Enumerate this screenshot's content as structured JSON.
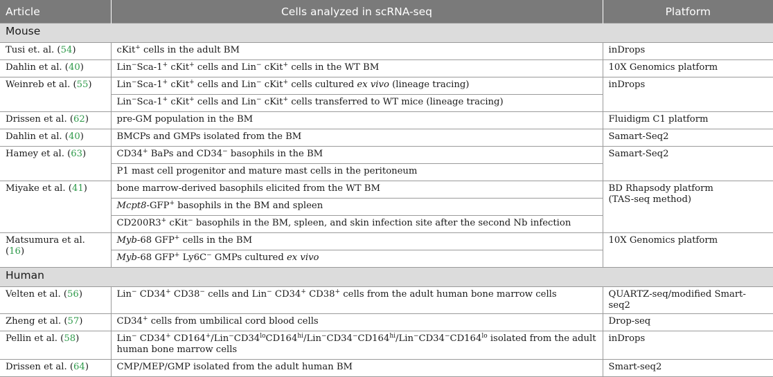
{
  "header": {
    "col_article": "Article",
    "col_cells": "Cells analyzed in scRNA-seq",
    "col_platform": "Platform"
  },
  "groups": {
    "mouse": "Mouse",
    "human": "Human"
  },
  "articles": {
    "tusi": {
      "name": "Tusi et. al. (",
      "ref": "54",
      "close": ")"
    },
    "dahlin1": {
      "name": "Dahlin et al. (",
      "ref": "40",
      "close": ")"
    },
    "weinreb": {
      "name": "Weinreb et al. (",
      "ref": "55",
      "close": ")"
    },
    "drissen1": {
      "name": "Drissen et al. (",
      "ref": "62",
      "close": ")"
    },
    "dahlin2": {
      "name": "Dahlin et al. (",
      "ref": "40",
      "close": ")"
    },
    "hamey": {
      "name": "Hamey et al. (",
      "ref": "63",
      "close": ")"
    },
    "miyake": {
      "name": "Miyake et al. (",
      "ref": "41",
      "close": ")"
    },
    "matsumura": {
      "name": "Matsumura et al. (",
      "ref": "16",
      "close": ")"
    },
    "velten": {
      "name": "Velten et al. (",
      "ref": "56",
      "close": ")"
    },
    "zheng": {
      "name": "Zheng et al. (",
      "ref": "57",
      "close": ")"
    },
    "pellin": {
      "name": "Pellin et al. (",
      "ref": "58",
      "close": ")"
    },
    "drissen2": {
      "name": "Drissen et al. (",
      "ref": "64",
      "close": ")"
    }
  },
  "cells": {
    "tusi": {
      "a": "cKit",
      "a_sup": "+",
      "b": " cells in the adult BM"
    },
    "dahlin1": {
      "t1": "Lin",
      "s1": "−",
      "t2": "Sca-1",
      "s2": "+",
      "t3": " cKit",
      "s3": "+",
      "t4": " cells and Lin",
      "s4": "−",
      "t5": " cKit",
      "s5": "+",
      "t6": " cells in the WT BM"
    },
    "weinreb1": {
      "t1": "Lin",
      "s1": "−",
      "t2": "Sca-1",
      "s2": "+",
      "t3": " cKit",
      "s3": "+",
      "t4": " cells and Lin",
      "s4": "−",
      "t5": " cKit",
      "s5": "+",
      "t6": " cells cultured ",
      "it": "ex vivo",
      "t7": " (lineage tracing)"
    },
    "weinreb2": {
      "t1": "Lin",
      "s1": "−",
      "t2": "Sca-1",
      "s2": "+",
      "t3": " cKit",
      "s3": "+",
      "t4": " cells and Lin",
      "s4": "−",
      "t5": " cKit",
      "s5": "+",
      "t6": " cells transferred to WT mice (lineage tracing)"
    },
    "drissen1": "pre-GM population in the BM",
    "dahlin2": "BMCPs and GMPs isolated from the BM",
    "hamey1": {
      "t1": "CD34",
      "s1": "+",
      "t2": " BaPs and CD34",
      "s2": "−",
      "t3": " basophils in the BM"
    },
    "hamey2": "P1 mast cell progenitor and mature mast cells in the peritoneum",
    "miyake1": "bone marrow-derived basophils elicited from the WT BM",
    "miyake2": {
      "it": "Mcpt8",
      "t1": "-GFP",
      "s1": "+",
      "t2": " basophils in the BM and spleen"
    },
    "miyake3": {
      "t1": "CD200R3",
      "s1": "+",
      "t2": " cKit",
      "s2": "−",
      "t3": " basophils in the BM, spleen, and skin infection site after the second Nb infection"
    },
    "matsumura1": {
      "it": "Myb",
      "t1": "-68 GFP",
      "s1": "+",
      "t2": " cells in the BM"
    },
    "matsumura2": {
      "it": "Myb",
      "t1": "-68 GFP",
      "s1": "+",
      "t2": " Ly6C",
      "s2": "−",
      "t3": " GMPs cultured ",
      "it2": "ex vivo"
    },
    "velten": {
      "t1": "Lin",
      "s1": "−",
      "t2": " CD34",
      "s2": "+",
      "t3": " CD38",
      "s3": "−",
      "t4": " cells and Lin",
      "s4": "−",
      "t5": " CD34",
      "s5": "+",
      "t6": " CD38",
      "s6": "+",
      "t7": " cells from the adult human bone marrow cells"
    },
    "zheng": {
      "t1": "CD34",
      "s1": "+",
      "t2": " cells from umbilical cord blood cells"
    },
    "pellin": {
      "t1": "Lin",
      "s1": "−",
      "t2": " CD34",
      "s2": "+",
      "t3": " CD164",
      "s3": "+",
      "t4": "/Lin",
      "s4": "−",
      "t5": "CD34",
      "s5": "lo",
      "t6": "CD164",
      "s6": "hi",
      "t7": "/Lin",
      "s7": "−",
      "t8": "CD34",
      "s8": "−",
      "t9": "CD164",
      "s9": "hi",
      "t10": "/Lin",
      "s10": "−",
      "t11": "CD34",
      "s11": "−",
      "t12": "CD164",
      "s12": "lo",
      "t13": " isolated from the adult human bone marrow cells"
    },
    "drissen2": "CMP/MEP/GMP isolated from the adult human BM"
  },
  "platforms": {
    "tusi": "inDrops",
    "dahlin1": "10X Genomics platform",
    "weinreb": "inDrops",
    "drissen1": "Fluidigm C1 platform",
    "dahlin2": "Samart-Seq2",
    "hamey": "Samart-Seq2",
    "miyake_l1": "BD Rhapsody platform",
    "miyake_l2": "(TAS-seq method)",
    "matsumura": "10X Genomics platform",
    "velten": "QUARTZ-seq/modified Smart-seq2",
    "zheng": "Drop-seq",
    "pellin": "inDrops",
    "drissen2": "Smart-seq2"
  },
  "colors": {
    "header_bg": "#7a7a7a",
    "group_bg": "#dcdcdc",
    "ref_link": "#2e9a4a",
    "border": "#9a9a9a"
  }
}
